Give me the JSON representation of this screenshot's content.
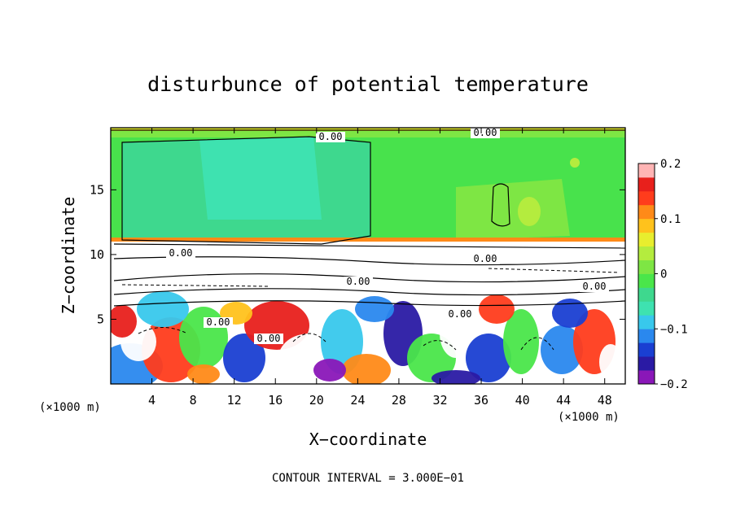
{
  "chart_data": {
    "type": "heatmap",
    "title": "disturbunce of potential temperature",
    "xlabel": "X−coordinate",
    "ylabel": "Z−coordinate",
    "x_unit": "(×1000 m)",
    "y_unit": "(×1000 m)",
    "xlim": [
      0,
      50
    ],
    "ylim": [
      0,
      19.8
    ],
    "xticks": [
      4,
      8,
      12,
      16,
      20,
      24,
      28,
      32,
      36,
      40,
      44,
      48
    ],
    "yticks": [
      5,
      10,
      15
    ],
    "colorbar": {
      "range": [
        -0.2,
        0.2
      ],
      "ticks": [
        0.2,
        0.1,
        0,
        -0.1,
        -0.2
      ],
      "tick_labels": [
        "0.2",
        "0.1",
        "0",
        "−0.1",
        "−0.2"
      ],
      "colors": [
        "#8a17b8",
        "#2a1aa4",
        "#1a3fd2",
        "#2a88ee",
        "#38c8ec",
        "#3ee2b0",
        "#3ed88e",
        "#4ae64a",
        "#7ee644",
        "#b4ec3e",
        "#e8ee2e",
        "#ffc21c",
        "#ff8a18",
        "#ff3c1c",
        "#e8201c",
        "#ffb4b4"
      ]
    },
    "contour_interval_text": "CONTOUR INTERVAL = 3.000E−01",
    "contour_labels": [
      "0.00",
      "0.00",
      "0.00",
      "0.00",
      "0.00",
      "0.00",
      "0.00",
      "0.00",
      "0.00"
    ]
  }
}
